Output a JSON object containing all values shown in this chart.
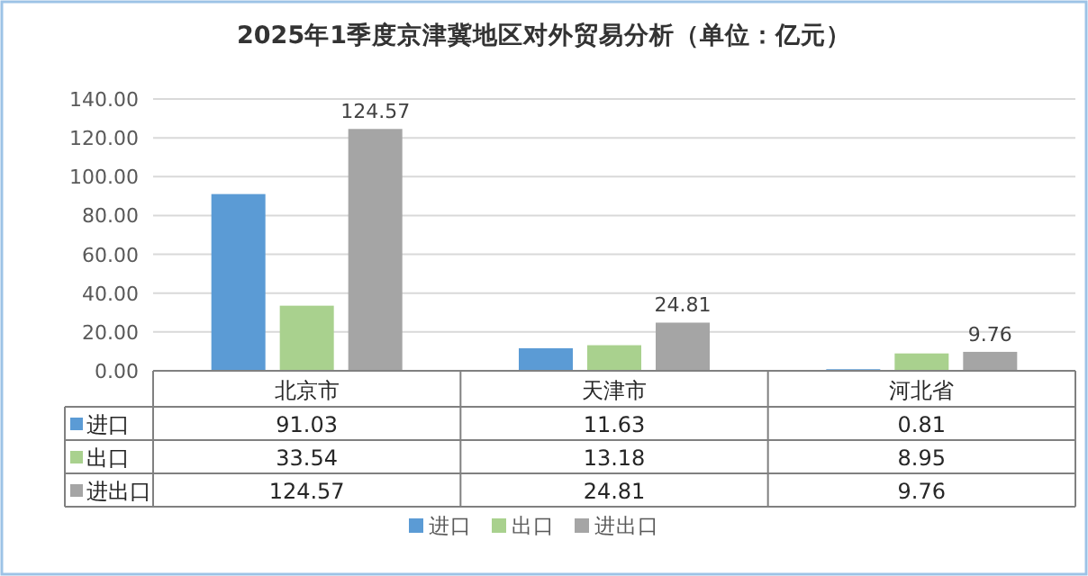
{
  "chart_data": {
    "type": "bar",
    "title": "2025年1季度京津冀地区对外贸易分析（单位：亿元）",
    "categories": [
      "北京市",
      "天津市",
      "河北省"
    ],
    "series": [
      {
        "name": "进口",
        "color": "#5b9bd5",
        "values": [
          91.03,
          11.63,
          0.81
        ]
      },
      {
        "name": "出口",
        "color": "#a9d18e",
        "values": [
          33.54,
          13.18,
          8.95
        ]
      },
      {
        "name": "进出口",
        "color": "#a5a5a5",
        "values": [
          124.57,
          24.81,
          9.76
        ],
        "value_labels": [
          "124.57",
          "24.81",
          "9.76"
        ]
      }
    ],
    "ylim": [
      0,
      140
    ],
    "yticks": [
      {
        "value": 0,
        "label": "0.00"
      },
      {
        "value": 20,
        "label": "20.00"
      },
      {
        "value": 40,
        "label": "40.00"
      },
      {
        "value": 60,
        "label": "60.00"
      },
      {
        "value": 80,
        "label": "80.00"
      },
      {
        "value": 100,
        "label": "100.00"
      },
      {
        "value": 120,
        "label": "120.00"
      },
      {
        "value": 140,
        "label": "140.00"
      }
    ],
    "grid": "y",
    "data_labels": true,
    "legend": "bottom"
  }
}
